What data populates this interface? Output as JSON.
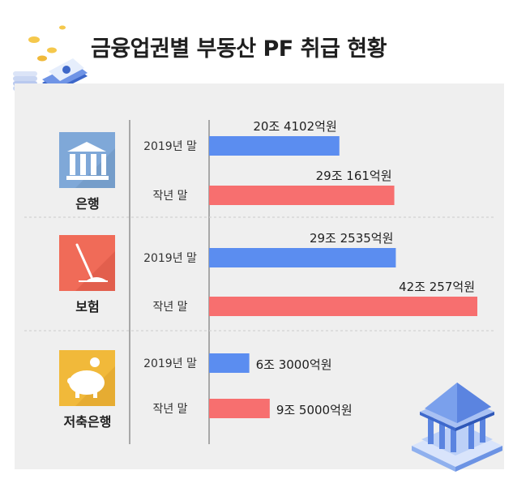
{
  "title": "금융업권별 부동산 PF 취급 현황",
  "colors": {
    "2019": "#5b8df0",
    "last_year": "#f76f6f"
  },
  "icons": [
    "bank-building-icon",
    "umbrella-icon",
    "piggy-bank-icon"
  ],
  "chart_data": {
    "type": "bar",
    "orientation": "horizontal",
    "title": "금융업권별 부동산 PF 취급 현황",
    "unit": "억원",
    "categories": [
      "은행",
      "보험",
      "저축은행"
    ],
    "series": [
      {
        "name": "2019년 말",
        "values": [
          204102,
          292535,
          63000
        ],
        "labels": [
          "20조 4102억원",
          "29조 2535억원",
          "6조 3000억원"
        ]
      },
      {
        "name": "작년 말",
        "values": [
          290161,
          420257,
          95000
        ],
        "labels": [
          "29조 161억원",
          "42조 257억원",
          "9조 5000억원"
        ]
      }
    ]
  }
}
